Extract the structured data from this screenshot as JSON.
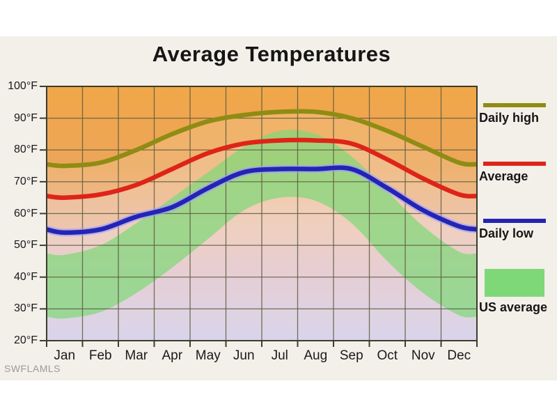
{
  "page": {
    "watermark": "SWFLAMLS",
    "panel_background": "#f3efe9",
    "page_background": "#ffffff"
  },
  "chart_data": {
    "type": "line",
    "title": "Average Temperatures",
    "categories": [
      "Jan",
      "Feb",
      "Mar",
      "Apr",
      "May",
      "Jun",
      "Jul",
      "Aug",
      "Sep",
      "Oct",
      "Nov",
      "Dec"
    ],
    "y_tick_labels": [
      "100°F",
      "90°F",
      "80°F",
      "70°F",
      "60°F",
      "50°F",
      "40°F",
      "30°F",
      "20°F"
    ],
    "ylim": [
      20,
      100
    ],
    "y_step": 10,
    "grid": true,
    "legend_position": "right",
    "series": [
      {
        "name": "Daily high",
        "type": "line",
        "color": "#8f8c14",
        "values": [
          75,
          76,
          80,
          85,
          89,
          91,
          92,
          92,
          90,
          86,
          81,
          76
        ]
      },
      {
        "name": "Average",
        "type": "line",
        "color": "#de2418",
        "values": [
          65,
          66,
          69,
          74,
          79,
          82,
          83,
          83,
          82,
          77,
          71,
          66
        ]
      },
      {
        "name": "Daily low",
        "type": "line",
        "color": "#2424b4",
        "halo": "#9d9dff",
        "values": [
          54,
          55,
          59,
          62,
          68,
          73,
          74,
          74,
          74,
          68,
          61,
          56
        ]
      },
      {
        "name": "US average",
        "type": "band",
        "color": "#7fd878",
        "high": [
          47,
          50,
          57,
          65,
          73,
          81,
          86,
          85,
          78,
          67,
          56,
          48
        ],
        "low": [
          27,
          29,
          35,
          43,
          52,
          61,
          65,
          64,
          57,
          45,
          35,
          28
        ]
      }
    ],
    "background_gradient": {
      "stops": [
        "#f1a748",
        "#eca55a",
        "#e7af8e",
        "#d9acb2",
        "#bdb9df"
      ],
      "offsets": [
        0,
        0.33,
        0.56,
        0.72,
        1
      ]
    },
    "grid_color": "#5c5c40",
    "axis_color": "#3c3c2e",
    "tick_label_color": "#1a1a1a"
  }
}
